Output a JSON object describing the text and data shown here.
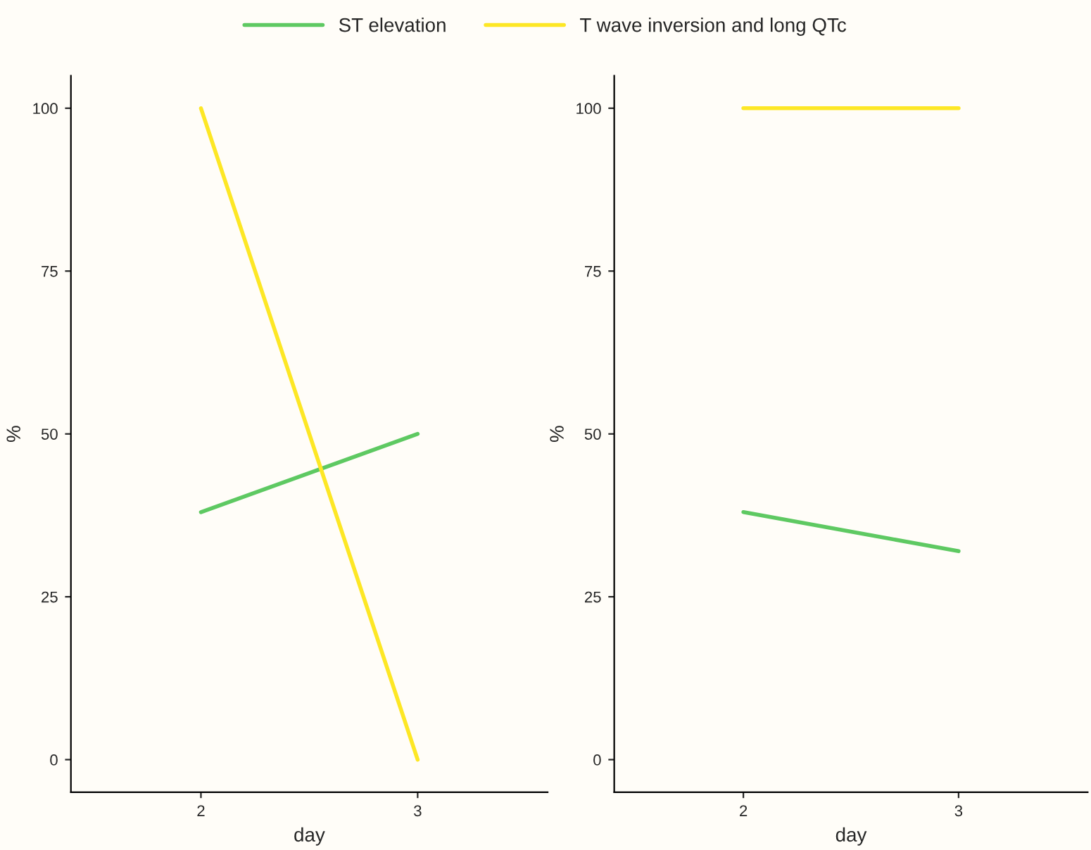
{
  "chart_data": [
    {
      "type": "line",
      "categories": [
        "2",
        "3"
      ],
      "xlabel": "day",
      "ylabel": "%",
      "ylim": [
        -5,
        105
      ],
      "yticks": [
        0,
        25,
        50,
        75,
        100
      ],
      "grid": false,
      "legend": "top",
      "series": [
        {
          "name": "ST elevation",
          "color": "#5ec962",
          "values": [
            38,
            50
          ]
        },
        {
          "name": "T wave inversion and long QTc",
          "color": "#fde725",
          "values": [
            100,
            0
          ]
        }
      ]
    },
    {
      "type": "line",
      "categories": [
        "2",
        "3"
      ],
      "xlabel": "day",
      "ylabel": "%",
      "ylim": [
        -5,
        105
      ],
      "yticks": [
        0,
        25,
        50,
        75,
        100
      ],
      "grid": false,
      "series": [
        {
          "color": "#5ec962",
          "values": [
            38,
            32
          ]
        },
        {
          "color": "#fde725",
          "values": [
            100,
            100
          ]
        }
      ]
    }
  ]
}
